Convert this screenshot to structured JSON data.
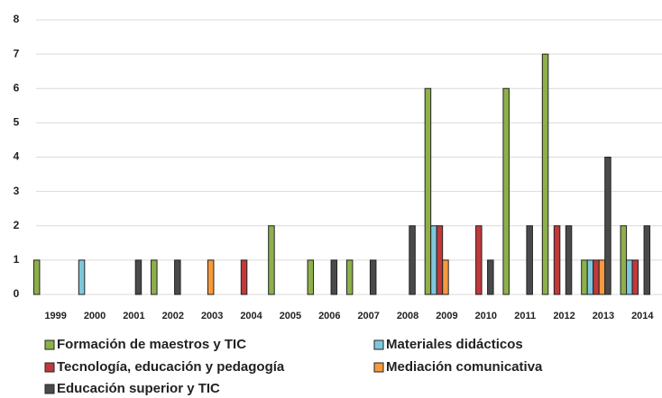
{
  "chart_data": {
    "type": "bar",
    "categories": [
      "1999",
      "2000",
      "2001",
      "2002",
      "2003",
      "2004",
      "2005",
      "2006",
      "2007",
      "2008",
      "2009",
      "2010",
      "2011",
      "2012",
      "2013",
      "2014"
    ],
    "series": [
      {
        "name": "Formación de maestros y TIC",
        "color": "#8db04a",
        "values": [
          1,
          0,
          0,
          1,
          0,
          0,
          2,
          1,
          1,
          0,
          6,
          0,
          6,
          7,
          1,
          2
        ]
      },
      {
        "name": "Materiales didácticos",
        "color": "#7fc8dc",
        "values": [
          0,
          1,
          0,
          0,
          0,
          0,
          0,
          0,
          0,
          0,
          2,
          0,
          0,
          0,
          1,
          1
        ]
      },
      {
        "name": "Tecnología, educación y pedagogía",
        "color": "#c0393b",
        "values": [
          0,
          0,
          0,
          0,
          0,
          1,
          0,
          0,
          0,
          0,
          2,
          2,
          0,
          2,
          1,
          1
        ]
      },
      {
        "name": "Mediación comunicativa",
        "color": "#f59a3e",
        "values": [
          0,
          0,
          0,
          0,
          1,
          0,
          0,
          0,
          0,
          0,
          1,
          0,
          0,
          0,
          1,
          0
        ]
      },
      {
        "name": "Educación superior  y TIC",
        "color": "#4a4a4a",
        "values": [
          0,
          0,
          1,
          1,
          0,
          0,
          0,
          1,
          1,
          2,
          0,
          1,
          2,
          2,
          4,
          2
        ]
      }
    ],
    "ylim": [
      0,
      8
    ],
    "yticks": [
      0,
      1,
      2,
      3,
      4,
      5,
      6,
      7,
      8
    ],
    "grid": true
  }
}
